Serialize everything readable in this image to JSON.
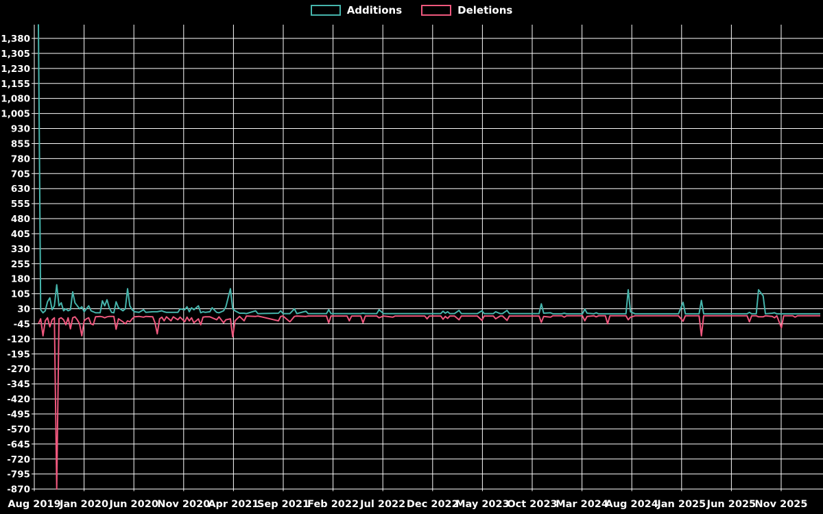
{
  "legend": {
    "items": [
      {
        "label": "Additions",
        "color": "#46b5ac",
        "series": "additions"
      },
      {
        "label": "Deletions",
        "color": "#f0587e",
        "series": "deletions"
      }
    ]
  },
  "colors": {
    "background": "#000000",
    "grid": "#ffffff",
    "text": "#ffffff",
    "additions": "#46b5ac",
    "deletions": "#f0587e"
  },
  "chart_data": {
    "type": "line",
    "title": "",
    "xlabel": "",
    "ylabel": "",
    "legend_position": "top-center",
    "grid": true,
    "x_axis": {
      "labels": [
        "Aug 2019",
        "Jan 2020",
        "Jun 2020",
        "Nov 2020",
        "Apr 2021",
        "Sep 2021",
        "Feb 2022",
        "Jul 2022",
        "Dec 2022",
        "May 2023",
        "Oct 2023",
        "Mar 2024",
        "Aug 2024",
        "Jan 2025",
        "Jun 2025",
        "Nov 2025"
      ],
      "weeks_between_labels": 21.73,
      "total_weeks": 342
    },
    "y_axis": {
      "min": -870,
      "max": 1380,
      "tick_step": 75
    },
    "series_names": [
      "Additions",
      "Deletions"
    ],
    "notes": "Weekly additions (positive) and deletions (negative). First-week additions spike is clipped at the chart top (>1,380); week-8 deletions spike reaches the chart bottom (-870, clipped). Points are [week_index, additions, deletions].",
    "points": [
      [
        0,
        1450,
        -45
      ],
      [
        1,
        25,
        -20
      ],
      [
        2,
        10,
        -105
      ],
      [
        3,
        20,
        -30
      ],
      [
        4,
        65,
        -15
      ],
      [
        5,
        85,
        -60
      ],
      [
        6,
        25,
        -25
      ],
      [
        7,
        45,
        -15
      ],
      [
        8,
        150,
        -870
      ],
      [
        9,
        45,
        -20
      ],
      [
        10,
        60,
        -15
      ],
      [
        11,
        20,
        -25
      ],
      [
        12,
        30,
        -50
      ],
      [
        13,
        20,
        -15
      ],
      [
        14,
        25,
        -70
      ],
      [
        15,
        115,
        -15
      ],
      [
        16,
        60,
        -10
      ],
      [
        17,
        45,
        -25
      ],
      [
        18,
        30,
        -45
      ],
      [
        19,
        40,
        -105
      ],
      [
        20,
        15,
        -30
      ],
      [
        21,
        30,
        -20
      ],
      [
        22,
        45,
        -15
      ],
      [
        23,
        20,
        -45
      ],
      [
        24,
        15,
        -50
      ],
      [
        25,
        10,
        -10
      ],
      [
        27,
        10,
        -8
      ],
      [
        28,
        70,
        -10
      ],
      [
        29,
        45,
        -15
      ],
      [
        30,
        75,
        -10
      ],
      [
        31,
        35,
        -8
      ],
      [
        32,
        12,
        -8
      ],
      [
        33,
        10,
        -8
      ],
      [
        34,
        65,
        -72
      ],
      [
        35,
        35,
        -20
      ],
      [
        37,
        20,
        -35
      ],
      [
        38,
        30,
        -45
      ],
      [
        39,
        130,
        -30
      ],
      [
        40,
        45,
        -35
      ],
      [
        41,
        25,
        -20
      ],
      [
        42,
        15,
        -10
      ],
      [
        44,
        12,
        -8
      ],
      [
        46,
        25,
        -12
      ],
      [
        47,
        12,
        -8
      ],
      [
        50,
        15,
        -10
      ],
      [
        51,
        15,
        -40
      ],
      [
        52,
        15,
        -95
      ],
      [
        53,
        18,
        -20
      ],
      [
        54,
        20,
        -12
      ],
      [
        55,
        15,
        -30
      ],
      [
        56,
        12,
        -10
      ],
      [
        58,
        12,
        -30
      ],
      [
        59,
        12,
        -10
      ],
      [
        61,
        12,
        -25
      ],
      [
        62,
        30,
        -12
      ],
      [
        64,
        25,
        -35
      ],
      [
        65,
        40,
        -12
      ],
      [
        66,
        15,
        -30
      ],
      [
        67,
        35,
        -15
      ],
      [
        68,
        25,
        -40
      ],
      [
        70,
        45,
        -20
      ],
      [
        71,
        10,
        -50
      ],
      [
        72,
        15,
        -12
      ],
      [
        73,
        12,
        -10
      ],
      [
        75,
        15,
        -10
      ],
      [
        76,
        35,
        -15
      ],
      [
        78,
        12,
        -25
      ],
      [
        79,
        10,
        -10
      ],
      [
        81,
        20,
        -40
      ],
      [
        82,
        40,
        -25
      ],
      [
        84,
        130,
        -20
      ],
      [
        85,
        30,
        -110
      ],
      [
        86,
        20,
        -30
      ],
      [
        88,
        8,
        -8
      ],
      [
        90,
        8,
        -30
      ],
      [
        91,
        6,
        -6
      ],
      [
        95,
        20,
        -8
      ],
      [
        96,
        6,
        -6
      ],
      [
        105,
        8,
        -30
      ],
      [
        106,
        20,
        -8
      ],
      [
        107,
        6,
        -6
      ],
      [
        110,
        6,
        -35
      ],
      [
        112,
        30,
        -8
      ],
      [
        113,
        6,
        -6
      ],
      [
        117,
        18,
        -8
      ],
      [
        118,
        6,
        -6
      ],
      [
        126,
        6,
        -6
      ],
      [
        127,
        25,
        -40
      ],
      [
        128,
        6,
        -6
      ],
      [
        135,
        6,
        -6
      ],
      [
        136,
        6,
        -30
      ],
      [
        137,
        6,
        -6
      ],
      [
        141,
        6,
        -6
      ],
      [
        142,
        8,
        -40
      ],
      [
        143,
        6,
        -6
      ],
      [
        148,
        6,
        -6
      ],
      [
        149,
        25,
        -15
      ],
      [
        151,
        6,
        -6
      ],
      [
        155,
        6,
        -12
      ],
      [
        156,
        6,
        -6
      ],
      [
        169,
        6,
        -6
      ],
      [
        170,
        6,
        -20
      ],
      [
        171,
        6,
        -6
      ],
      [
        176,
        6,
        -6
      ],
      [
        177,
        18,
        -22
      ],
      [
        178,
        8,
        -8
      ],
      [
        179,
        15,
        -18
      ],
      [
        180,
        6,
        -6
      ],
      [
        182,
        6,
        -6
      ],
      [
        184,
        22,
        -25
      ],
      [
        185,
        6,
        -6
      ],
      [
        192,
        6,
        -6
      ],
      [
        194,
        20,
        -28
      ],
      [
        195,
        6,
        -6
      ],
      [
        199,
        6,
        -6
      ],
      [
        200,
        15,
        -20
      ],
      [
        202,
        6,
        -6
      ],
      [
        203,
        6,
        -6
      ],
      [
        205,
        22,
        -28
      ],
      [
        206,
        6,
        -6
      ],
      [
        219,
        6,
        -6
      ],
      [
        220,
        55,
        -38
      ],
      [
        221,
        8,
        -8
      ],
      [
        224,
        10,
        -12
      ],
      [
        225,
        5,
        -5
      ],
      [
        229,
        5,
        -5
      ],
      [
        230,
        8,
        -12
      ],
      [
        231,
        5,
        -5
      ],
      [
        238,
        5,
        -5
      ],
      [
        239,
        28,
        -30
      ],
      [
        240,
        8,
        -8
      ],
      [
        243,
        5,
        -5
      ],
      [
        244,
        10,
        -10
      ],
      [
        245,
        5,
        -5
      ],
      [
        248,
        5,
        -5
      ],
      [
        249,
        5,
        -45
      ],
      [
        250,
        5,
        -5
      ],
      [
        257,
        5,
        -5
      ],
      [
        258,
        125,
        -25
      ],
      [
        259,
        15,
        -12
      ],
      [
        261,
        5,
        -5
      ],
      [
        280,
        5,
        -5
      ],
      [
        282,
        62,
        -32
      ],
      [
        283,
        5,
        -5
      ],
      [
        289,
        5,
        -5
      ],
      [
        290,
        72,
        -105
      ],
      [
        291,
        5,
        -5
      ],
      [
        310,
        5,
        -5
      ],
      [
        311,
        12,
        -35
      ],
      [
        312,
        5,
        -5
      ],
      [
        314,
        5,
        -5
      ],
      [
        315,
        125,
        -10
      ],
      [
        317,
        95,
        -10
      ],
      [
        318,
        5,
        -5
      ],
      [
        321,
        8,
        -8
      ],
      [
        322,
        10,
        -15
      ],
      [
        323,
        5,
        -5
      ],
      [
        325,
        5,
        -65
      ],
      [
        326,
        5,
        -5
      ],
      [
        330,
        5,
        -5
      ],
      [
        331,
        5,
        -12
      ],
      [
        332,
        5,
        -5
      ],
      [
        342,
        5,
        -5
      ]
    ]
  }
}
